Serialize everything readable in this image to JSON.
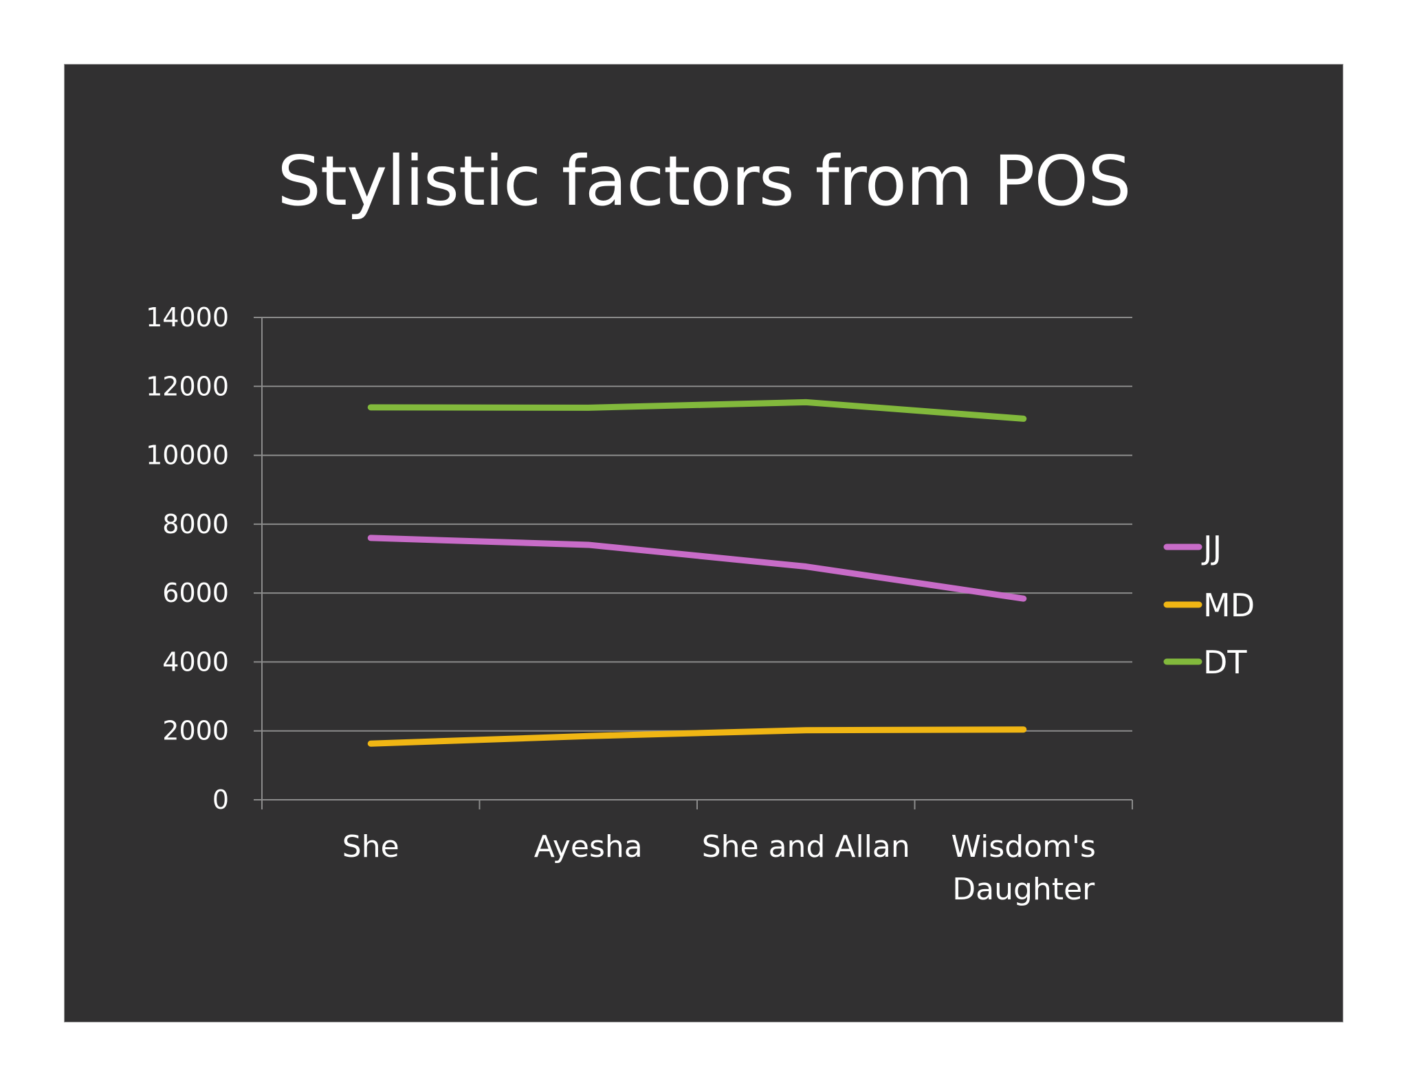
{
  "chart_data": {
    "type": "line",
    "title": "Stylistic factors from POS",
    "xlabel": "",
    "ylabel": "",
    "categories": [
      "She",
      "Ayesha",
      "She and Allan",
      "Wisdom's Daughter"
    ],
    "series": [
      {
        "name": "JJ",
        "color": "#c86cc8",
        "values": [
          7600,
          7400,
          6770,
          5840
        ]
      },
      {
        "name": "MD",
        "color": "#f0b614",
        "values": [
          1630,
          1850,
          2020,
          2040
        ]
      },
      {
        "name": "DT",
        "color": "#82b93c",
        "values": [
          11390,
          11380,
          11540,
          11060
        ]
      }
    ],
    "ylim": [
      0,
      14000
    ],
    "yticks": [
      0,
      2000,
      4000,
      6000,
      8000,
      10000,
      12000,
      14000
    ],
    "grid": true,
    "legend_position": "right"
  },
  "colors": {
    "background": "#313031",
    "gridline": "#8c8c8c",
    "text": "#ffffff"
  }
}
